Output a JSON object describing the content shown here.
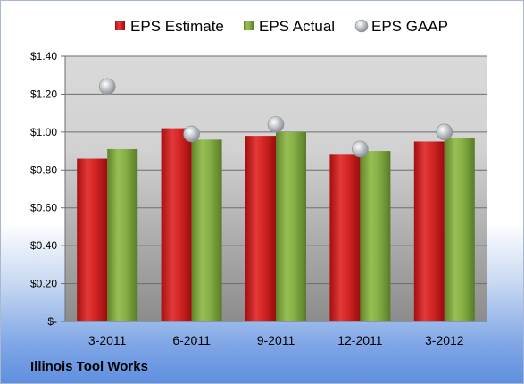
{
  "company": "Illinois Tool Works",
  "colors": {
    "estimate": "#cc1f1f",
    "actual": "#7aa33c",
    "gaap": "#b8bcc2"
  },
  "chart_data": {
    "type": "bar",
    "categories": [
      "3-2011",
      "6-2011",
      "9-2011",
      "12-2011",
      "3-2012"
    ],
    "series": [
      {
        "name": "EPS Estimate",
        "type": "bar",
        "values": [
          0.86,
          1.02,
          0.98,
          0.88,
          0.95
        ]
      },
      {
        "name": "EPS Actual",
        "type": "bar",
        "values": [
          0.91,
          0.96,
          1.0,
          0.9,
          0.97
        ]
      },
      {
        "name": "EPS GAAP",
        "type": "scatter",
        "values": [
          1.24,
          0.99,
          1.04,
          0.91,
          1.0
        ]
      }
    ],
    "ylim": [
      0,
      1.4
    ],
    "yticks": [
      0,
      0.2,
      0.4,
      0.6,
      0.8,
      1.0,
      1.2,
      1.4
    ],
    "ytick_labels": [
      "$-",
      "$0.20",
      "$0.40",
      "$0.60",
      "$0.80",
      "$1.00",
      "$1.20",
      "$1.40"
    ],
    "legend_position": "top",
    "grid": true
  }
}
